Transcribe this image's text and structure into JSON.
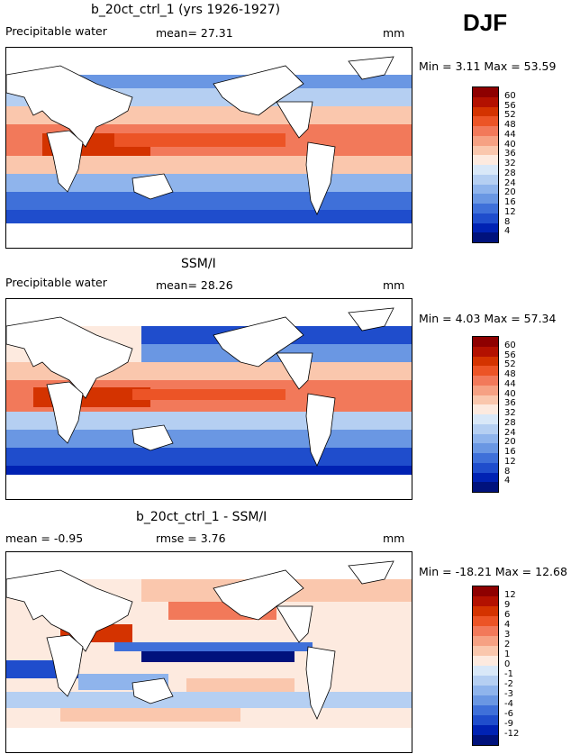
{
  "season": "DJF",
  "panels": [
    {
      "title": "b_20ct_ctrl_1 (yrs 1926-1927)",
      "left_label": "Precipitable water",
      "mid_label": "mean=  27.31",
      "units": "mm",
      "minmax": "Min =    3.11  Max =  53.59",
      "legend": [
        "60",
        "56",
        "52",
        "48",
        "44",
        "40",
        "36",
        "32",
        "28",
        "24",
        "20",
        "16",
        "12",
        "8",
        "4"
      ],
      "colors": [
        "#8e0000",
        "#b31100",
        "#d43300",
        "#ec5426",
        "#f2795a",
        "#f6a183",
        "#fac7ad",
        "#fdeadf",
        "#d9e8f8",
        "#b5cff2",
        "#8fb4ec",
        "#6a97e3",
        "#3f70d9",
        "#1f4dcc",
        "#0022b3",
        "#00127c"
      ]
    },
    {
      "title": "SSM/I",
      "left_label": "Precipitable water",
      "mid_label": "mean=  28.26",
      "units": "mm",
      "minmax": "Min =    4.03  Max =  57.34",
      "legend": [
        "60",
        "56",
        "52",
        "48",
        "44",
        "40",
        "36",
        "32",
        "28",
        "24",
        "20",
        "16",
        "12",
        "8",
        "4"
      ],
      "colors": [
        "#8e0000",
        "#b31100",
        "#d43300",
        "#ec5426",
        "#f2795a",
        "#f6a183",
        "#fac7ad",
        "#fdeadf",
        "#d9e8f8",
        "#b5cff2",
        "#8fb4ec",
        "#6a97e3",
        "#3f70d9",
        "#1f4dcc",
        "#0022b3",
        "#00127c"
      ]
    },
    {
      "title": "b_20ct_ctrl_1 - SSM/I",
      "left_label": "mean =   -0.95",
      "mid_label": "rmse =    3.76",
      "units": "mm",
      "minmax": "Min = -18.21  Max =  12.68",
      "legend": [
        "12",
        "9",
        "6",
        "4",
        "3",
        "2",
        "1",
        "0",
        "-1",
        "-2",
        "-3",
        "-4",
        "-6",
        "-9",
        "-12"
      ],
      "colors": [
        "#8e0000",
        "#b31100",
        "#d43300",
        "#ec5426",
        "#f2795a",
        "#f6a183",
        "#fac7ad",
        "#fdeadf",
        "#d9e8f8",
        "#b5cff2",
        "#8fb4ec",
        "#6a97e3",
        "#3f70d9",
        "#1f4dcc",
        "#0022b3",
        "#00127c"
      ]
    }
  ]
}
